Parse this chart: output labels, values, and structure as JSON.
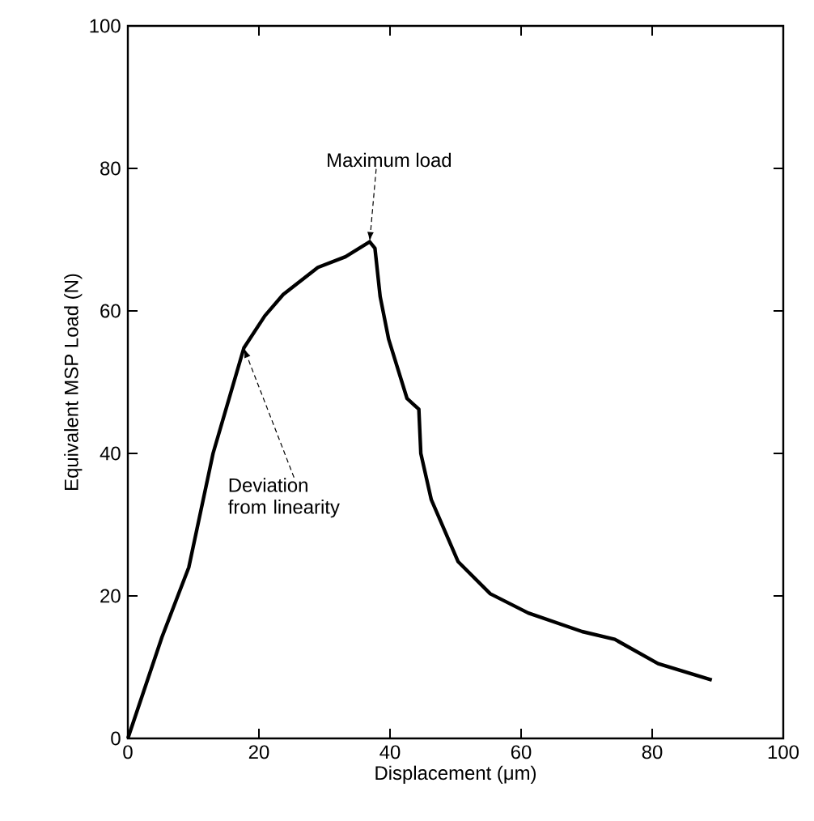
{
  "chart_data": {
    "type": "line",
    "xlabel": "Displacement (μm)",
    "ylabel": "Equivalent MSP Load (N)",
    "x": [
      0,
      5.2,
      9.3,
      13,
      17.7,
      20.9,
      23.7,
      29,
      33.2,
      36.9,
      37.7,
      38.5,
      39.8,
      42.6,
      44.4,
      44.7,
      46.3,
      50.4,
      55.3,
      61.1,
      69.3,
      74.3,
      80.9,
      89.1
    ],
    "series": [
      {
        "color": "#000000",
        "values": [
          0,
          14.2,
          24,
          40,
          54.8,
          59.3,
          62.3,
          66.1,
          67.6,
          69.7,
          68.8,
          62,
          56,
          47.7,
          46.2,
          40,
          33.5,
          24.8,
          20.3,
          17.6,
          15,
          13.9,
          10.5,
          8.2
        ]
      }
    ],
    "xlim": [
      0,
      100
    ],
    "ylim": [
      0,
      100
    ],
    "xticks": [
      0,
      20,
      40,
      60,
      80,
      100
    ],
    "yticks": [
      0,
      20,
      40,
      60,
      80,
      100
    ],
    "marker": "none",
    "line_style": "solid",
    "annotations": [
      {
        "text": "Maximum load",
        "x": 36.9,
        "y": 69.7
      },
      {
        "text": "Deviation from linearity",
        "x": 17.7,
        "y": 54.8
      }
    ]
  }
}
